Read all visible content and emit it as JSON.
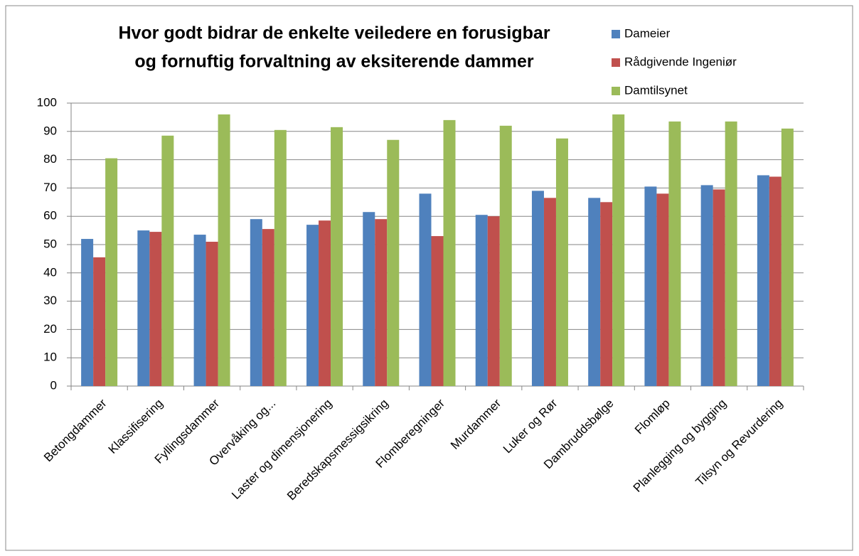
{
  "chart_data": {
    "type": "bar",
    "title": [
      "Hvor godt bidrar de enkelte veiledere en forusigbar",
      "og fornuftig forvaltning av eksiterende dammer"
    ],
    "categories": [
      "Betongdammer",
      "Klassifisering",
      "Fyllingsdammer",
      "Overvåking og...",
      "Laster og dimensjonering",
      "Beredskapsmessigsikring",
      "Flomberegninger",
      "Murdammer",
      "Luker og Rør",
      "Dambruddsbølge",
      "Flomløp",
      "Planlegging og bygging",
      "Tilsyn og Revurdering"
    ],
    "series": [
      {
        "name": "Dameier",
        "color": "#4f81bd",
        "values": [
          52,
          55,
          53.5,
          59,
          57,
          61.5,
          68,
          60.5,
          69,
          66.5,
          70.5,
          71,
          74.5
        ]
      },
      {
        "name": "Rådgivende Ingeniør",
        "color": "#c0504d",
        "values": [
          45.5,
          54.5,
          51,
          55.5,
          58.5,
          59,
          53,
          60,
          66.5,
          65,
          68,
          69.5,
          74
        ]
      },
      {
        "name": "Damtilsynet",
        "color": "#9bbb59",
        "values": [
          80.5,
          88.5,
          96,
          90.5,
          91.5,
          87,
          94,
          92,
          87.5,
          96,
          93.5,
          93.5,
          91
        ]
      }
    ],
    "ylim": [
      0,
      100
    ],
    "yticks": [
      0,
      10,
      20,
      30,
      40,
      50,
      60,
      70,
      80,
      90,
      100
    ],
    "grid": true,
    "legend": "top-right"
  }
}
